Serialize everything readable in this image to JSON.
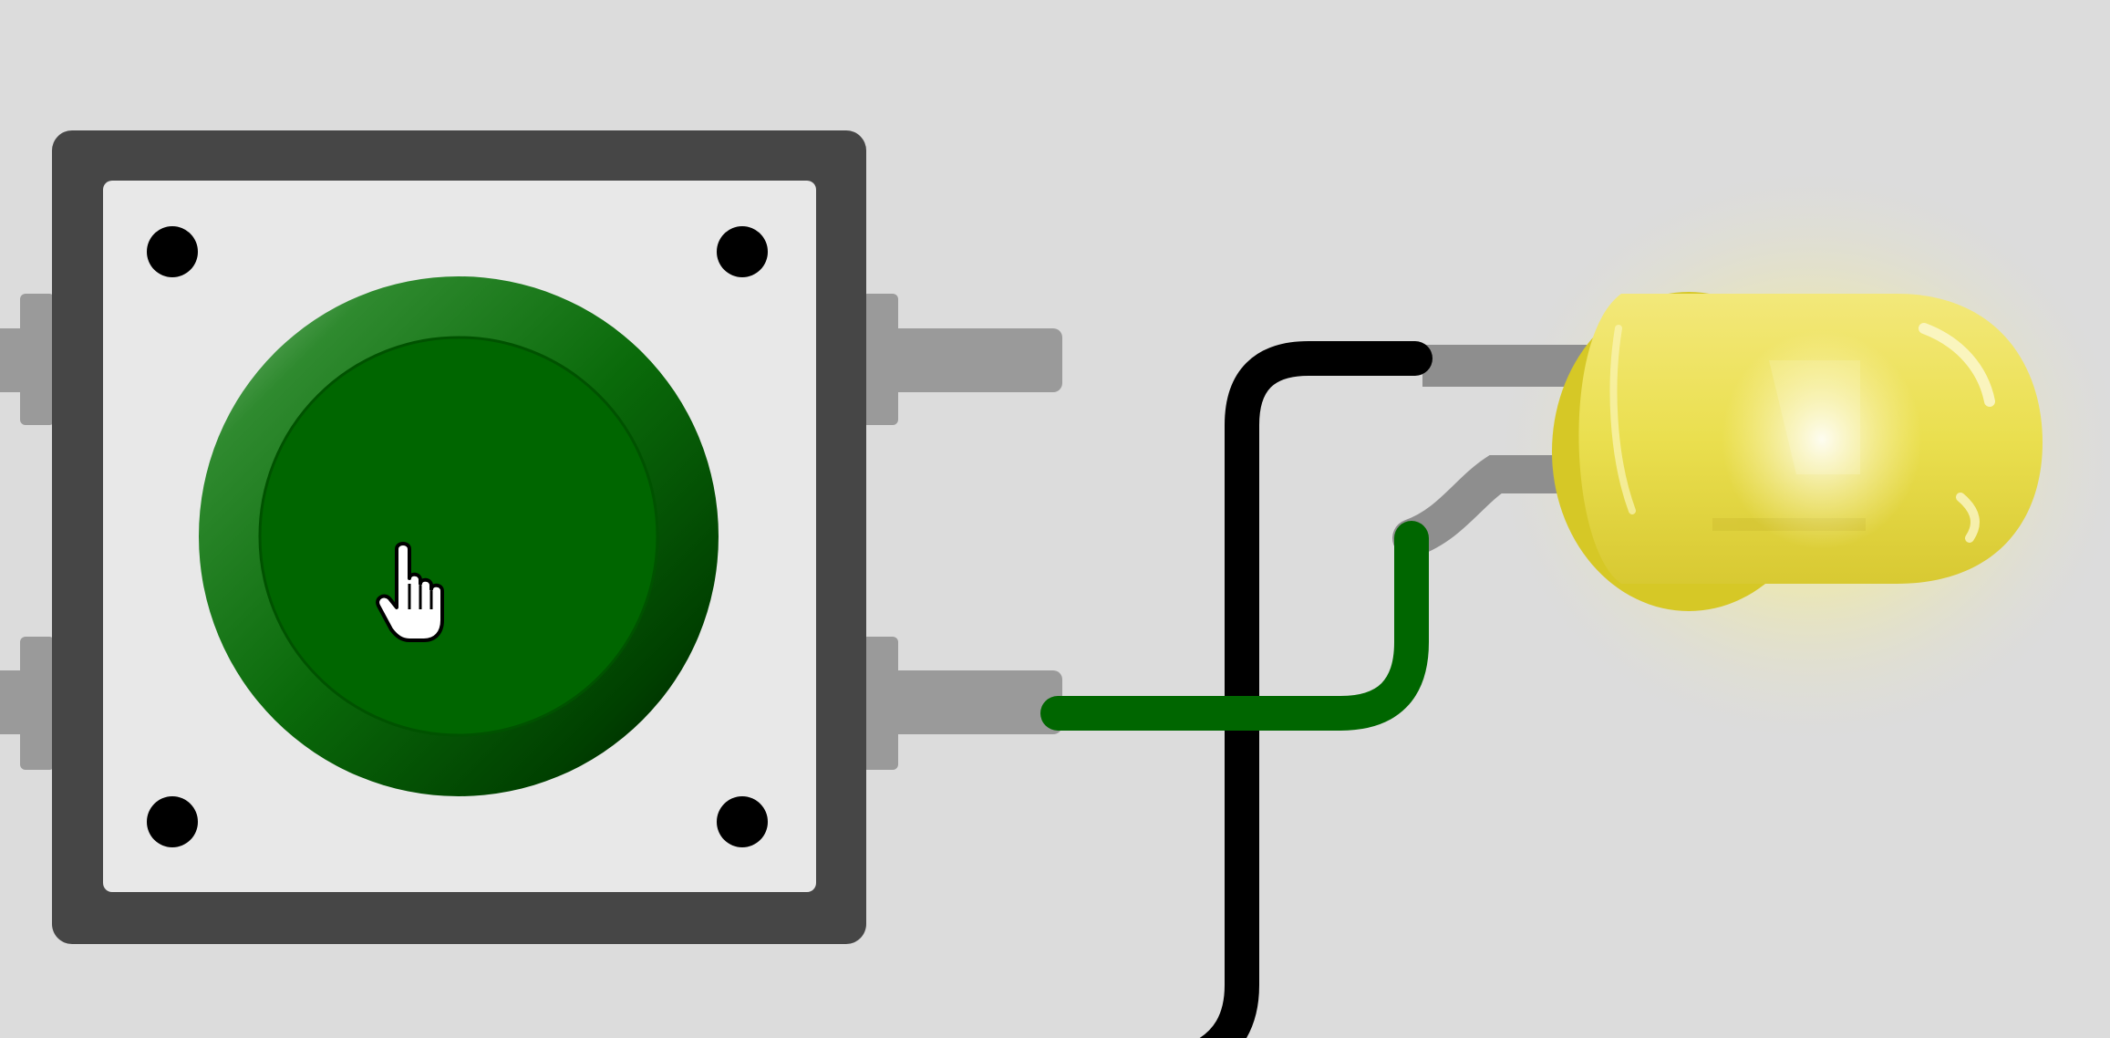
{
  "scene": {
    "background_color": "#dcdcdc",
    "components": {
      "pushbutton": {
        "cap_color": "#006600",
        "housing_color": "#464646",
        "face_color": "#e8e8e8",
        "state": "hovered"
      },
      "led": {
        "color": "yellow",
        "body_color": "#ede055",
        "state": "lit"
      }
    },
    "wires": [
      {
        "id": "black-wire",
        "color": "#000000"
      },
      {
        "id": "green-wire",
        "color": "#006600"
      }
    ],
    "cursor": {
      "icon": "hand-pointer-icon"
    }
  }
}
